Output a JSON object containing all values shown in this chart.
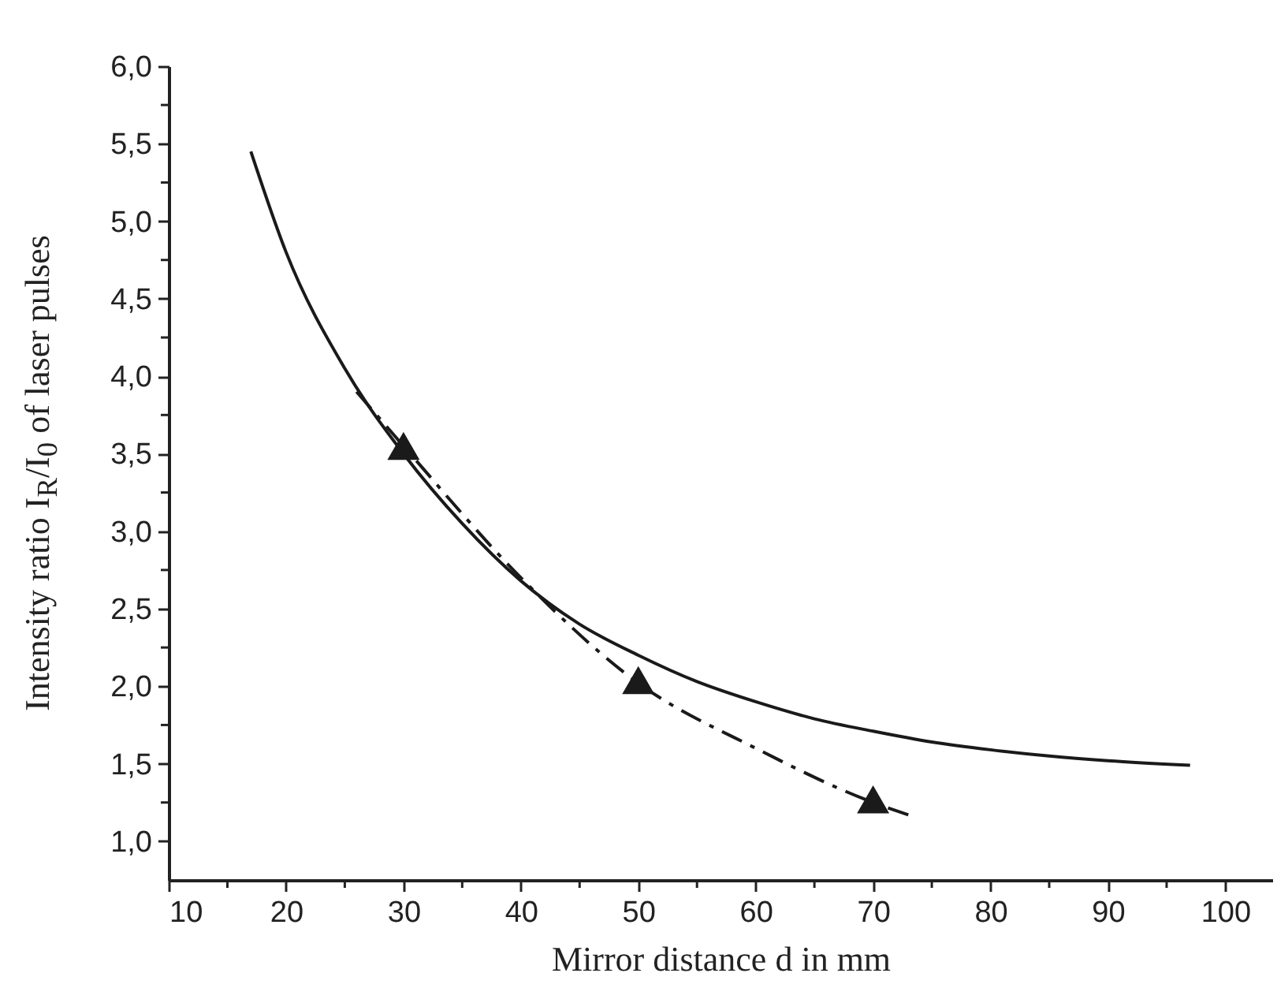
{
  "chart_data": {
    "type": "line",
    "xlabel": "Mirror distance d in mm",
    "ylabel": "Intensity ratio I$_{R}$/I$_{0}$ of laser pulses",
    "xlim": [
      10,
      104
    ],
    "ylim": [
      0.75,
      6.0
    ],
    "xticks": [
      10,
      {
        "value": 15,
        "label": null
      },
      20,
      {
        "value": 25,
        "label": null
      },
      30,
      {
        "value": 35,
        "label": null
      },
      40,
      {
        "value": 45,
        "label": null
      },
      50,
      {
        "value": 55,
        "label": null
      },
      60,
      {
        "value": 65,
        "label": null
      },
      70,
      {
        "value": 75,
        "label": null
      },
      80,
      {
        "value": 85,
        "label": null
      },
      90,
      {
        "value": 95,
        "label": null
      },
      100
    ],
    "yticks": [
      {
        "value": 1.0,
        "label": "1,0"
      },
      {
        "value": 1.25,
        "label": null
      },
      {
        "value": 1.5,
        "label": "1,5"
      },
      {
        "value": 1.75,
        "label": null
      },
      {
        "value": 2.0,
        "label": "2,0"
      },
      {
        "value": 2.25,
        "label": null
      },
      {
        "value": 2.5,
        "label": "2,5"
      },
      {
        "value": 2.75,
        "label": null
      },
      {
        "value": 3.0,
        "label": "3,0"
      },
      {
        "value": 3.25,
        "label": null
      },
      {
        "value": 3.5,
        "label": "3,5"
      },
      {
        "value": 3.75,
        "label": null
      },
      {
        "value": 4.0,
        "label": "4,0"
      },
      {
        "value": 4.25,
        "label": null
      },
      {
        "value": 4.5,
        "label": "4,5"
      },
      {
        "value": 4.75,
        "label": null
      },
      {
        "value": 5.0,
        "label": "5,0"
      },
      {
        "value": 5.25,
        "label": null
      },
      {
        "value": 5.5,
        "label": "5,5"
      },
      {
        "value": 5.75,
        "label": null
      },
      {
        "value": 6.0,
        "label": "6,0"
      }
    ],
    "grid": false,
    "series": [
      {
        "type": "line",
        "color": "#1a1a1a",
        "line_style": "solid",
        "x": [
          17,
          20,
          25,
          30,
          35,
          40,
          45,
          50,
          55,
          60,
          65,
          70,
          75,
          80,
          85,
          90,
          97
        ],
        "values": [
          5.45,
          4.8,
          4.05,
          3.5,
          3.05,
          2.68,
          2.4,
          2.2,
          2.03,
          1.9,
          1.79,
          1.71,
          1.64,
          1.59,
          1.55,
          1.52,
          1.49
        ]
      },
      {
        "type": "line",
        "color": "#1a1a1a",
        "line_style": "dashed",
        "x": [
          26,
          30,
          40,
          50,
          60,
          70,
          73
        ],
        "values": [
          3.9,
          3.55,
          2.7,
          2.02,
          1.6,
          1.25,
          1.17
        ]
      },
      {
        "type": "scatter",
        "color": "#1a1a1a",
        "marker": "triangle",
        "x": [
          30,
          50,
          70
        ],
        "values": [
          3.55,
          2.04,
          1.27
        ]
      }
    ]
  }
}
